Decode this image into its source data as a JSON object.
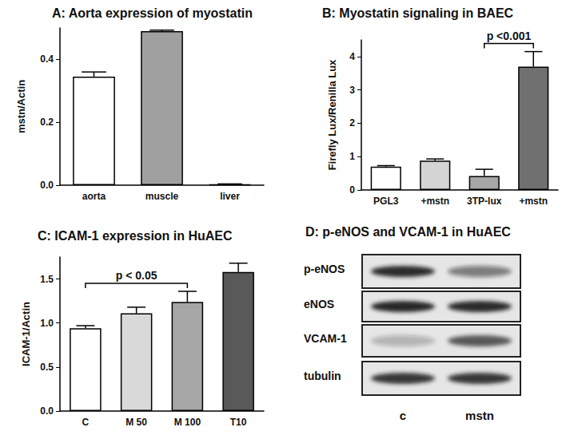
{
  "chart_data": [
    {
      "type": "bar",
      "title": "A: Aorta expression of myostatin",
      "y_label": "mstn/Actin",
      "categories": [
        "aorta",
        "muscle",
        "liver"
      ],
      "values": [
        0.345,
        0.49,
        0.003
      ],
      "errors": [
        0.015,
        0.003,
        0.001
      ],
      "colors": [
        "#ffffff",
        "#a0a0a0",
        "#555555"
      ],
      "ylim": [
        0,
        0.5
      ],
      "yticks": [
        {
          "value": 0,
          "label": "0.0"
        },
        {
          "value": 0.2,
          "label": "0.2"
        },
        {
          "value": 0.4,
          "label": "0.4"
        }
      ],
      "grid": false
    },
    {
      "type": "bar",
      "title": "B: Myostatin signaling in BAEC",
      "y_label": "Firefly Lux/Renilla Lux",
      "categories": [
        "PGL3",
        "+mstn",
        "3TP-lux",
        "+mstn"
      ],
      "values": [
        0.7,
        0.88,
        0.42,
        3.7
      ],
      "errors": [
        0.03,
        0.05,
        0.2,
        0.45
      ],
      "colors": [
        "#ffffff",
        "#d4d4d4",
        "#a6a6a6",
        "#707070"
      ],
      "ylim": [
        0,
        4.5
      ],
      "yticks": [
        0,
        1,
        2,
        3,
        4
      ],
      "grid": false,
      "annotations": [
        {
          "text": "p <0.001",
          "span": [
            2,
            3
          ]
        }
      ]
    },
    {
      "type": "bar",
      "title": "C: ICAM-1 expression in HuAEC",
      "y_label": "ICAM-1/Actin",
      "categories": [
        "C",
        "M 50",
        "M 100",
        "T10"
      ],
      "values": [
        0.94,
        1.11,
        1.24,
        1.58
      ],
      "errors": [
        0.03,
        0.07,
        0.12,
        0.1
      ],
      "colors": [
        "#ffffff",
        "#d9d9d9",
        "#a6a6a6",
        "#595959"
      ],
      "ylim": [
        0,
        1.75
      ],
      "yticks": [
        {
          "value": 0,
          "label": "0.0"
        },
        {
          "value": 0.5,
          "label": "0.5"
        },
        {
          "value": 1,
          "label": "1.0"
        },
        {
          "value": 1.5,
          "label": "1.5"
        }
      ],
      "grid": false,
      "annotations": [
        {
          "text": "p < 0.05",
          "span": [
            0,
            2
          ]
        }
      ]
    }
  ],
  "blot": {
    "title": "D: p-eNOS and VCAM-1 in HuAEC",
    "lanes": [
      "c",
      "mstn"
    ],
    "rows": [
      {
        "label": "p-eNOS",
        "signal": [
          0.9,
          0.5
        ]
      },
      {
        "label": "eNOS",
        "signal": [
          0.95,
          0.9
        ]
      },
      {
        "label": "VCAM-1",
        "signal": [
          0.25,
          0.7
        ]
      },
      {
        "label": "tubulin",
        "signal": [
          0.85,
          0.85
        ]
      }
    ]
  }
}
